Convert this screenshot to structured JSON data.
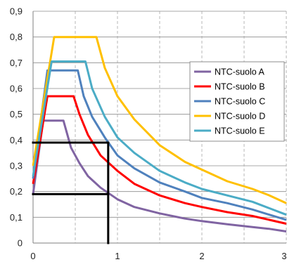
{
  "chart_data": {
    "type": "line",
    "title": "",
    "xlabel": "",
    "ylabel": "",
    "xlim": [
      0,
      3
    ],
    "ylim": [
      0,
      0.9
    ],
    "x_ticks": [
      "0",
      "1",
      "2",
      "3"
    ],
    "y_ticks": [
      "0",
      "0,1",
      "0,2",
      "0,3",
      "0,4",
      "0,5",
      "0,6",
      "0,7",
      "0,8",
      "0,9"
    ],
    "grid": {
      "horizontal": "solid",
      "vertical": "dashed",
      "vertical_step": 0.5
    },
    "legend_position": "right",
    "series": [
      {
        "name": "NTC-suolo A",
        "color": "#8064A2",
        "points": [
          [
            0,
            0.19
          ],
          [
            0.12,
            0.475
          ],
          [
            0.36,
            0.475
          ],
          [
            0.45,
            0.37
          ],
          [
            0.55,
            0.31
          ],
          [
            0.65,
            0.26
          ],
          [
            0.8,
            0.215
          ],
          [
            1.0,
            0.17
          ],
          [
            1.2,
            0.14
          ],
          [
            1.5,
            0.115
          ],
          [
            1.8,
            0.095
          ],
          [
            2.0,
            0.085
          ],
          [
            2.3,
            0.073
          ],
          [
            2.6,
            0.062
          ],
          [
            2.8,
            0.055
          ],
          [
            3.0,
            0.045
          ]
        ]
      },
      {
        "name": "NTC-suolo B",
        "color": "#FF0000",
        "points": [
          [
            0,
            0.23
          ],
          [
            0.17,
            0.57
          ],
          [
            0.48,
            0.57
          ],
          [
            0.55,
            0.5
          ],
          [
            0.65,
            0.42
          ],
          [
            0.8,
            0.34
          ],
          [
            1.0,
            0.28
          ],
          [
            1.2,
            0.23
          ],
          [
            1.5,
            0.185
          ],
          [
            1.8,
            0.155
          ],
          [
            2.0,
            0.14
          ],
          [
            2.3,
            0.12
          ],
          [
            2.6,
            0.105
          ],
          [
            2.8,
            0.09
          ],
          [
            3.0,
            0.075
          ]
        ]
      },
      {
        "name": "NTC-suolo C",
        "color": "#4F81BD",
        "points": [
          [
            0,
            0.25
          ],
          [
            0.17,
            0.67
          ],
          [
            0.53,
            0.67
          ],
          [
            0.6,
            0.57
          ],
          [
            0.7,
            0.49
          ],
          [
            0.85,
            0.41
          ],
          [
            1.0,
            0.34
          ],
          [
            1.2,
            0.29
          ],
          [
            1.5,
            0.235
          ],
          [
            1.8,
            0.2
          ],
          [
            2.0,
            0.175
          ],
          [
            2.3,
            0.155
          ],
          [
            2.6,
            0.13
          ],
          [
            2.8,
            0.11
          ],
          [
            3.0,
            0.09
          ]
        ]
      },
      {
        "name": "NTC-suolo D",
        "color": "#FFC000",
        "points": [
          [
            0,
            0.3
          ],
          [
            0.25,
            0.8
          ],
          [
            0.75,
            0.8
          ],
          [
            0.85,
            0.68
          ],
          [
            1.0,
            0.57
          ],
          [
            1.2,
            0.48
          ],
          [
            1.5,
            0.38
          ],
          [
            1.8,
            0.315
          ],
          [
            2.0,
            0.285
          ],
          [
            2.3,
            0.24
          ],
          [
            2.6,
            0.21
          ],
          [
            2.8,
            0.185
          ],
          [
            3.0,
            0.155
          ]
        ]
      },
      {
        "name": "NTC-suolo E",
        "color": "#4BACC6",
        "points": [
          [
            0,
            0.26
          ],
          [
            0.22,
            0.705
          ],
          [
            0.62,
            0.705
          ],
          [
            0.7,
            0.6
          ],
          [
            0.85,
            0.49
          ],
          [
            1.0,
            0.41
          ],
          [
            1.2,
            0.35
          ],
          [
            1.5,
            0.28
          ],
          [
            1.8,
            0.235
          ],
          [
            2.0,
            0.21
          ],
          [
            2.3,
            0.185
          ],
          [
            2.6,
            0.16
          ],
          [
            2.8,
            0.135
          ],
          [
            3.0,
            0.11
          ]
        ]
      }
    ],
    "annotation_lines": {
      "color": "#000000",
      "segments": [
        {
          "from": [
            0,
            0.39
          ],
          "to": [
            0.89,
            0.39
          ]
        },
        {
          "from": [
            0,
            0.19
          ],
          "to": [
            0.89,
            0.19
          ]
        },
        {
          "from": [
            0.89,
            0.39
          ],
          "to": [
            0.89,
            0
          ]
        }
      ]
    }
  }
}
